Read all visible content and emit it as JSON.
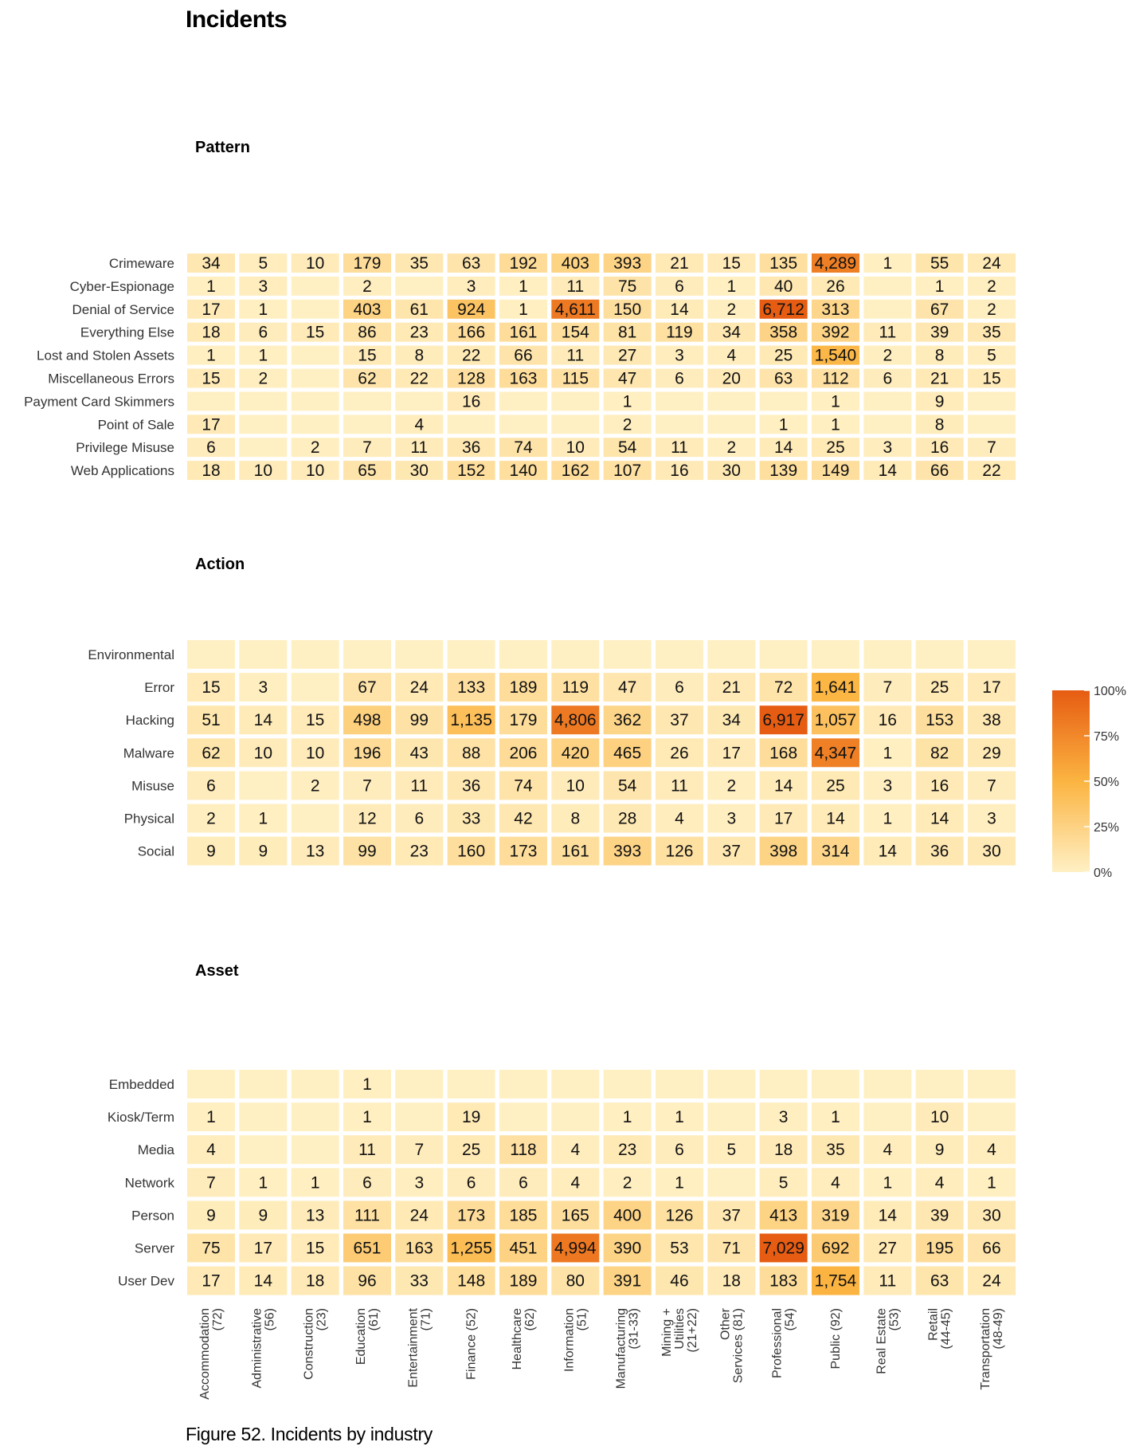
{
  "title": "Incidents",
  "caption": "Figure 52. Incidents by industry",
  "colors": {
    "low": "#fff0c4",
    "mid": "#fbb441",
    "high": "#e65c12"
  },
  "legend": {
    "ticks": [
      "100%",
      "75%",
      "50%",
      "25%",
      "0%"
    ]
  },
  "chart_data": {
    "type": "heatmap",
    "columns": [
      [
        "Accommodation",
        "(72)"
      ],
      [
        "Administrative",
        "(56)"
      ],
      [
        "Construction",
        "(23)"
      ],
      [
        "Education",
        "(61)"
      ],
      [
        "Entertainment",
        "(71)"
      ],
      [
        "Finance (52)"
      ],
      [
        "Healthcare",
        "(62)"
      ],
      [
        "Information",
        "(51)"
      ],
      [
        "Manufacturing",
        "(31-33)"
      ],
      [
        "Mining +",
        "Utilities",
        "(21+22)"
      ],
      [
        "Other",
        "Services (81)"
      ],
      [
        "Professional",
        "(54)"
      ],
      [
        "Public (92)"
      ],
      [
        "Real Estate",
        "(53)"
      ],
      [
        "Retail",
        "(44-45)"
      ],
      [
        "Transportation",
        "(48-49)"
      ]
    ],
    "panels": [
      {
        "title": "Pattern",
        "rows": [
          {
            "label": "Crimeware",
            "values": [
              34,
              5,
              10,
              179,
              35,
              63,
              192,
              403,
              393,
              21,
              15,
              135,
              4289,
              1,
              55,
              24
            ]
          },
          {
            "label": "Cyber-Espionage",
            "values": [
              1,
              3,
              null,
              2,
              null,
              3,
              1,
              11,
              75,
              6,
              1,
              40,
              26,
              null,
              1,
              2
            ]
          },
          {
            "label": "Denial of Service",
            "values": [
              17,
              1,
              null,
              403,
              61,
              924,
              1,
              4611,
              150,
              14,
              2,
              6712,
              313,
              null,
              67,
              2
            ]
          },
          {
            "label": "Everything Else",
            "values": [
              18,
              6,
              15,
              86,
              23,
              166,
              161,
              154,
              81,
              119,
              34,
              358,
              392,
              11,
              39,
              35
            ]
          },
          {
            "label": "Lost and Stolen Assets",
            "values": [
              1,
              1,
              null,
              15,
              8,
              22,
              66,
              11,
              27,
              3,
              4,
              25,
              1540,
              2,
              8,
              5
            ]
          },
          {
            "label": "Miscellaneous Errors",
            "values": [
              15,
              2,
              null,
              62,
              22,
              128,
              163,
              115,
              47,
              6,
              20,
              63,
              112,
              6,
              21,
              15
            ]
          },
          {
            "label": "Payment Card Skimmers",
            "values": [
              null,
              null,
              null,
              null,
              null,
              16,
              null,
              null,
              1,
              null,
              null,
              null,
              1,
              null,
              9,
              null
            ]
          },
          {
            "label": "Point of Sale",
            "values": [
              17,
              null,
              null,
              null,
              4,
              null,
              null,
              null,
              2,
              null,
              null,
              1,
              1,
              null,
              8,
              null
            ]
          },
          {
            "label": "Privilege Misuse",
            "values": [
              6,
              null,
              2,
              7,
              11,
              36,
              74,
              10,
              54,
              11,
              2,
              14,
              25,
              3,
              16,
              7
            ]
          },
          {
            "label": "Web Applications",
            "values": [
              18,
              10,
              10,
              65,
              30,
              152,
              140,
              162,
              107,
              16,
              30,
              139,
              149,
              14,
              66,
              22
            ]
          }
        ]
      },
      {
        "title": "Action",
        "rows": [
          {
            "label": "Environmental",
            "values": [
              null,
              null,
              null,
              null,
              null,
              null,
              null,
              null,
              null,
              null,
              null,
              null,
              null,
              null,
              null,
              null
            ]
          },
          {
            "label": "Error",
            "values": [
              15,
              3,
              null,
              67,
              24,
              133,
              189,
              119,
              47,
              6,
              21,
              72,
              1641,
              7,
              25,
              17
            ]
          },
          {
            "label": "Hacking",
            "values": [
              51,
              14,
              15,
              498,
              99,
              1135,
              179,
              4806,
              362,
              37,
              34,
              6917,
              1057,
              16,
              153,
              38
            ]
          },
          {
            "label": "Malware",
            "values": [
              62,
              10,
              10,
              196,
              43,
              88,
              206,
              420,
              465,
              26,
              17,
              168,
              4347,
              1,
              82,
              29
            ]
          },
          {
            "label": "Misuse",
            "values": [
              6,
              null,
              2,
              7,
              11,
              36,
              74,
              10,
              54,
              11,
              2,
              14,
              25,
              3,
              16,
              7
            ]
          },
          {
            "label": "Physical",
            "values": [
              2,
              1,
              null,
              12,
              6,
              33,
              42,
              8,
              28,
              4,
              3,
              17,
              14,
              1,
              14,
              3
            ]
          },
          {
            "label": "Social",
            "values": [
              9,
              9,
              13,
              99,
              23,
              160,
              173,
              161,
              393,
              126,
              37,
              398,
              314,
              14,
              36,
              30
            ]
          }
        ]
      },
      {
        "title": "Asset",
        "rows": [
          {
            "label": "Embedded",
            "values": [
              null,
              null,
              null,
              1,
              null,
              null,
              null,
              null,
              null,
              null,
              null,
              null,
              null,
              null,
              null,
              null
            ]
          },
          {
            "label": "Kiosk/Term",
            "values": [
              1,
              null,
              null,
              1,
              null,
              19,
              null,
              null,
              1,
              1,
              null,
              3,
              1,
              null,
              10,
              null
            ]
          },
          {
            "label": "Media",
            "values": [
              4,
              null,
              null,
              11,
              7,
              25,
              118,
              4,
              23,
              6,
              5,
              18,
              35,
              4,
              9,
              4
            ]
          },
          {
            "label": "Network",
            "values": [
              7,
              1,
              1,
              6,
              3,
              6,
              6,
              4,
              2,
              1,
              null,
              5,
              4,
              1,
              4,
              1
            ]
          },
          {
            "label": "Person",
            "values": [
              9,
              9,
              13,
              111,
              24,
              173,
              185,
              165,
              400,
              126,
              37,
              413,
              319,
              14,
              39,
              30
            ]
          },
          {
            "label": "Server",
            "values": [
              75,
              17,
              15,
              651,
              163,
              1255,
              451,
              4994,
              390,
              53,
              71,
              7029,
              692,
              27,
              195,
              66
            ]
          },
          {
            "label": "User Dev",
            "values": [
              17,
              14,
              18,
              96,
              33,
              148,
              189,
              80,
              391,
              46,
              18,
              183,
              1754,
              11,
              63,
              24
            ]
          }
        ]
      }
    ]
  }
}
